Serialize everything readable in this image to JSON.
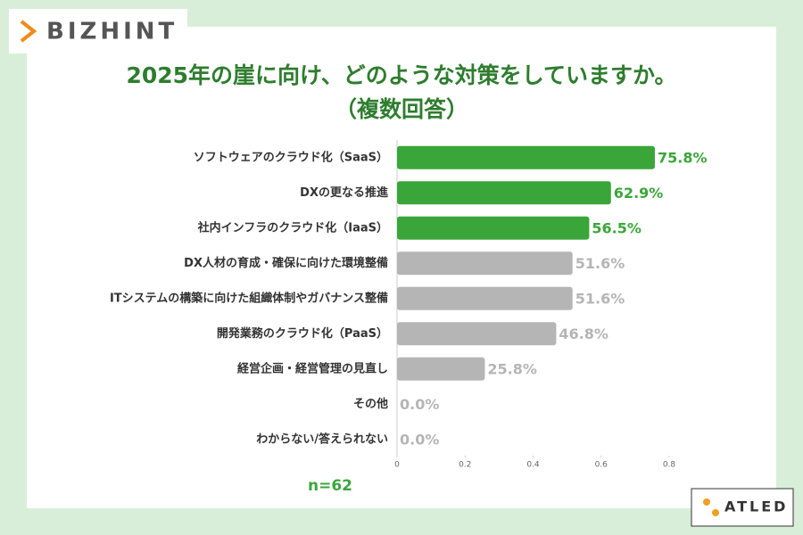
{
  "chart_data": {
    "type": "barh",
    "title": "2025年の崖に向け、どのような対策をしていますか。",
    "subtitle": "（複数回答）",
    "categories": [
      "ソフトウェアのクラウド化（SaaS）",
      "DXの更なる推進",
      "社内インフラのクラウド化（IaaS）",
      "DX人材の育成・確保に向けた環境整備",
      "ITシステムの構築に向けた組織体制やガバナンス整備",
      "開発業務のクラウド化（PaaS）",
      "経営企画・経営管理の見直し",
      "その他",
      "わからない/答えられない"
    ],
    "values": [
      0.758,
      0.629,
      0.565,
      0.516,
      0.516,
      0.468,
      0.258,
      0,
      0
    ],
    "value_labels": [
      "75.8%",
      "62.9%",
      "56.5%",
      "51.6%",
      "51.6%",
      "46.8%",
      "25.8%",
      "0.0%",
      "0.0%"
    ],
    "colors": [
      "#3aa63a",
      "#3aa63a",
      "#3aa63a",
      "#b5b5b5",
      "#b5b5b5",
      "#b5b5b5",
      "#b5b5b5",
      "#b5b5b5",
      "#b5b5b5"
    ],
    "xlim": [
      0,
      0.8
    ],
    "xticks": [
      0,
      0.2,
      0.4,
      0.6,
      0.8
    ],
    "note": "n=62"
  },
  "logos": {
    "left": "BIZHINT",
    "right": "ATLED"
  }
}
